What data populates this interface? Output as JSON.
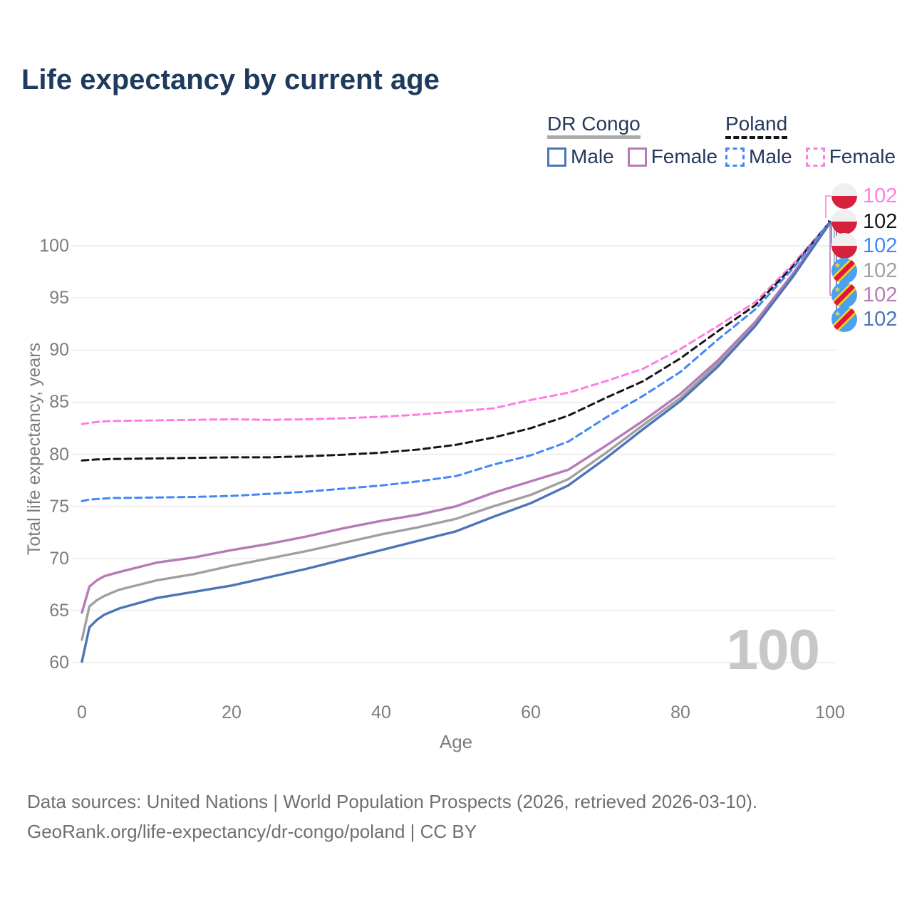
{
  "title": "Life expectancy by current age",
  "legend": {
    "groups": [
      {
        "label": "DR Congo",
        "line_style": "solid",
        "entries": [
          {
            "label": "Male",
            "color": "#4C74B9"
          },
          {
            "label": "Female",
            "color": "#B57BB5"
          }
        ]
      },
      {
        "label": "Poland",
        "line_style": "dashed",
        "entries": [
          {
            "label": "Male",
            "color": "#4187F6"
          },
          {
            "label": "Female",
            "color": "#FF7DE3"
          }
        ]
      }
    ]
  },
  "axes": {
    "x_label": "Age",
    "y_label": "Total life expectancy, years",
    "x_tick_labels": [
      "0",
      "20",
      "40",
      "60",
      "80",
      "100"
    ],
    "y_tick_labels": [
      "100",
      "95",
      "90",
      "85",
      "80",
      "75",
      "70",
      "65",
      "60"
    ]
  },
  "watermark": "100",
  "footer": {
    "line1": "Data sources: United Nations | World Population Prospects (2026, retrieved 2026-03-10).",
    "line2": "GeoRank.org/life-expectancy/dr-congo/poland | CC BY"
  },
  "icons": {
    "poland_flag": "circle, white upper half over red lower half",
    "dr_congo_flag": "sky-blue circle, red diagonal band with yellow edges, yellow star top-left"
  },
  "colors": {
    "title_text": "#1F3A5C",
    "legend_text": "#24395C",
    "axis_text": "#7D7D7D",
    "grid": "#E9E9E9",
    "watermark": "#C7C7C7",
    "footer_text": "#6F6F6F"
  },
  "chart_data": {
    "type": "line",
    "title": "Life expectancy by current age",
    "xlabel": "Age",
    "ylabel": "Total life expectancy, years",
    "xlim": [
      0,
      100
    ],
    "ylim": [
      60,
      103
    ],
    "x_ticks": [
      0,
      20,
      40,
      60,
      80,
      100
    ],
    "y_ticks": [
      60,
      65,
      70,
      75,
      80,
      85,
      90,
      95,
      100
    ],
    "grid": true,
    "legend_position": "top-right",
    "x": [
      0,
      1,
      2,
      3,
      4,
      5,
      10,
      15,
      20,
      25,
      30,
      35,
      40,
      45,
      50,
      55,
      60,
      65,
      70,
      75,
      80,
      85,
      90,
      95,
      100
    ],
    "series": [
      {
        "id": "poland-female",
        "country": "Poland",
        "sex": "female",
        "color": "#FF7DE3",
        "line_style": "dashed",
        "end_label": "102",
        "flag": "poland",
        "values": [
          82.9,
          83.0,
          83.1,
          83.15,
          83.2,
          83.2,
          83.25,
          83.3,
          83.35,
          83.3,
          83.35,
          83.45,
          83.6,
          83.8,
          84.1,
          84.4,
          85.2,
          85.9,
          87.0,
          88.2,
          90.1,
          92.3,
          94.6,
          98.2,
          102.3
        ]
      },
      {
        "id": "poland-all",
        "country": "Poland",
        "sex": "all",
        "color": "#161616",
        "line_style": "dashed",
        "end_label": "102",
        "flag": "poland",
        "values": [
          79.4,
          79.45,
          79.5,
          79.5,
          79.55,
          79.55,
          79.6,
          79.65,
          79.7,
          79.7,
          79.8,
          79.95,
          80.15,
          80.45,
          80.9,
          81.6,
          82.5,
          83.7,
          85.4,
          87.0,
          89.2,
          91.8,
          94.3,
          98.0,
          102.3
        ]
      },
      {
        "id": "poland-male",
        "country": "Poland",
        "sex": "male",
        "color": "#4187F6",
        "line_style": "dashed",
        "end_label": "102",
        "flag": "poland",
        "values": [
          75.5,
          75.65,
          75.7,
          75.75,
          75.8,
          75.8,
          75.85,
          75.9,
          76.0,
          76.2,
          76.4,
          76.7,
          77.0,
          77.4,
          77.9,
          79.0,
          79.9,
          81.2,
          83.5,
          85.6,
          87.9,
          91.0,
          93.9,
          97.8,
          102.3
        ]
      },
      {
        "id": "dr-congo-all",
        "country": "DR Congo",
        "sex": "all",
        "color": "#A0A0A0",
        "line_style": "solid",
        "end_label": "102",
        "flag": "drc",
        "values": [
          62.2,
          65.4,
          66.0,
          66.4,
          66.7,
          67.0,
          67.9,
          68.5,
          69.3,
          70.0,
          70.7,
          71.5,
          72.3,
          73.0,
          73.8,
          75.0,
          76.1,
          77.6,
          80.1,
          82.8,
          85.4,
          88.7,
          92.5,
          97.1,
          102.2
        ]
      },
      {
        "id": "dr-congo-female",
        "country": "DR Congo",
        "sex": "female",
        "color": "#B57BB5",
        "line_style": "solid",
        "end_label": "102",
        "flag": "drc",
        "values": [
          64.8,
          67.3,
          67.9,
          68.3,
          68.5,
          68.7,
          69.6,
          70.1,
          70.8,
          71.4,
          72.1,
          72.9,
          73.6,
          74.2,
          75.0,
          76.3,
          77.4,
          78.5,
          80.8,
          83.2,
          85.8,
          89.0,
          92.7,
          97.3,
          102.2
        ]
      },
      {
        "id": "dr-congo-male",
        "country": "DR Congo",
        "sex": "male",
        "color": "#4C74B9",
        "line_style": "solid",
        "end_label": "102",
        "flag": "drc",
        "values": [
          60.1,
          63.4,
          64.1,
          64.6,
          64.9,
          65.2,
          66.2,
          66.8,
          67.4,
          68.2,
          69.0,
          69.9,
          70.8,
          71.7,
          72.6,
          74.0,
          75.3,
          77.0,
          79.6,
          82.4,
          85.1,
          88.4,
          92.3,
          97.0,
          102.2
        ]
      }
    ]
  }
}
